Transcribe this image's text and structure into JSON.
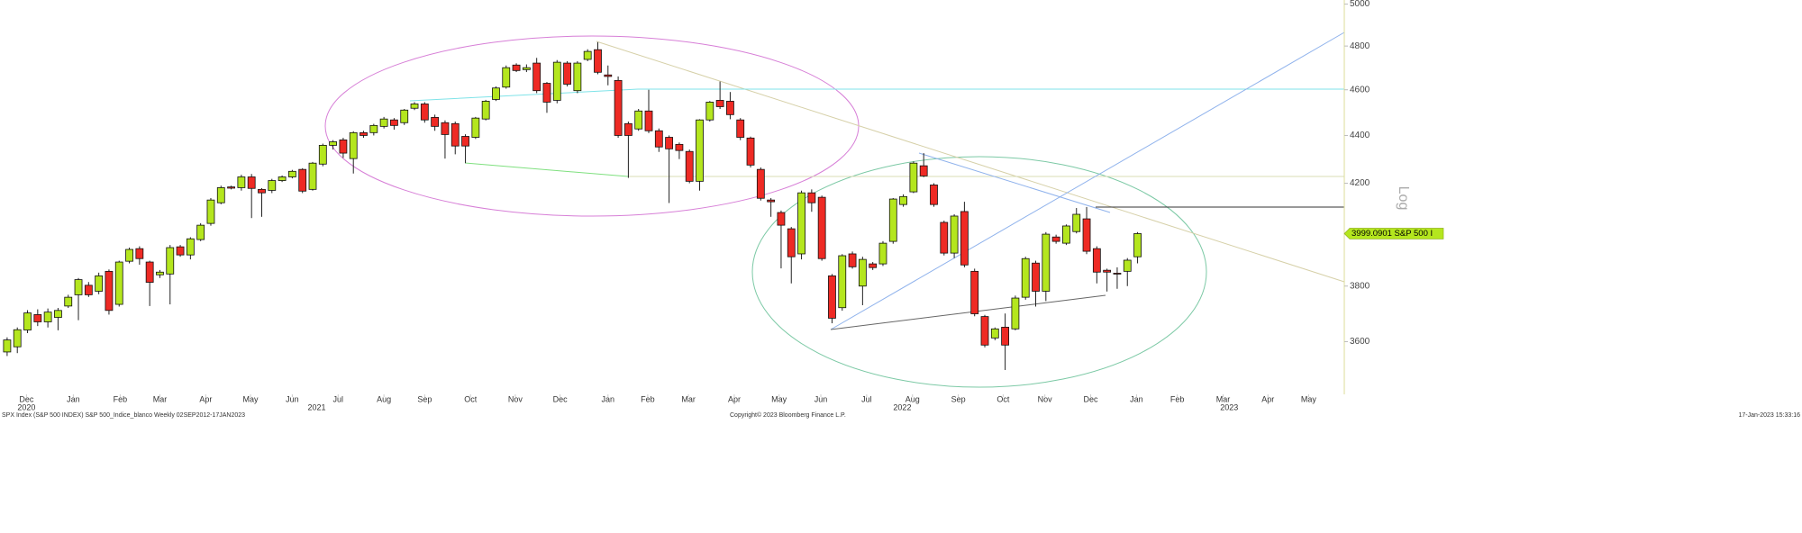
{
  "chart_data": {
    "type": "candlestick",
    "log_scale": true,
    "y_axis_label": "Log",
    "last_price_label": "3999.0901 S&P 500 I",
    "up_color": "#b4e61e",
    "down_color": "#ee2a24",
    "ylim": [
      3420,
      5020
    ],
    "yticks": [
      3600,
      3800,
      4200,
      4400,
      4600,
      4800,
      5000
    ],
    "xlim": [
      -0.7,
      131.3
    ],
    "xticks": [
      {
        "value": 1.9,
        "label": "Dec"
      },
      {
        "value": 6.5,
        "label": "Jan"
      },
      {
        "value": 11.1,
        "label": "Feb"
      },
      {
        "value": 15.0,
        "label": "Mar"
      },
      {
        "value": 19.5,
        "label": "Apr"
      },
      {
        "value": 23.9,
        "label": "May"
      },
      {
        "value": 28.0,
        "label": "Jun"
      },
      {
        "value": 32.5,
        "label": "Jul"
      },
      {
        "value": 37.0,
        "label": "Aug"
      },
      {
        "value": 41.0,
        "label": "Sep"
      },
      {
        "value": 45.5,
        "label": "Oct"
      },
      {
        "value": 49.9,
        "label": "Nov"
      },
      {
        "value": 54.3,
        "label": "Dec"
      },
      {
        "value": 59.0,
        "label": "Jan"
      },
      {
        "value": 62.9,
        "label": "Feb"
      },
      {
        "value": 66.9,
        "label": "Mar"
      },
      {
        "value": 71.4,
        "label": "Apr"
      },
      {
        "value": 75.8,
        "label": "May"
      },
      {
        "value": 79.9,
        "label": "Jun"
      },
      {
        "value": 84.4,
        "label": "Jul"
      },
      {
        "value": 88.9,
        "label": "Aug"
      },
      {
        "value": 93.4,
        "label": "Sep"
      },
      {
        "value": 97.8,
        "label": "Oct"
      },
      {
        "value": 101.9,
        "label": "Nov"
      },
      {
        "value": 106.4,
        "label": "Dec"
      },
      {
        "value": 110.9,
        "label": "Jan"
      },
      {
        "value": 114.9,
        "label": "Feb"
      },
      {
        "value": 119.4,
        "label": "Mar"
      },
      {
        "value": 123.8,
        "label": "Apr"
      },
      {
        "value": 127.8,
        "label": "May"
      }
    ],
    "year_ticks": [
      {
        "value": 1.9,
        "label": "2020"
      },
      {
        "value": 30.4,
        "label": "2021"
      },
      {
        "value": 87.9,
        "label": "2022"
      },
      {
        "value": 120.0,
        "label": "2023"
      }
    ],
    "x": [
      0,
      1,
      2,
      3,
      4,
      5,
      6,
      7,
      8,
      9,
      10,
      11,
      12,
      13,
      14,
      15,
      16,
      17,
      18,
      19,
      20,
      21,
      22,
      23,
      24,
      25,
      26,
      27,
      28,
      29,
      30,
      31,
      32,
      33,
      34,
      35,
      36,
      37,
      38,
      39,
      40,
      41,
      42,
      43,
      44,
      45,
      46,
      47,
      48,
      49,
      50,
      51,
      52,
      53,
      54,
      55,
      56,
      57,
      58,
      59,
      60,
      61,
      62,
      63,
      64,
      65,
      66,
      67,
      68,
      69,
      70,
      71,
      72,
      73,
      74,
      75,
      76,
      77,
      78,
      79,
      80,
      81,
      82,
      83,
      84,
      85,
      86,
      87,
      88,
      89,
      90,
      91,
      92,
      93,
      94,
      95,
      96,
      97,
      98,
      99,
      100,
      101,
      102,
      103,
      104,
      105,
      106,
      107,
      108,
      109,
      110,
      111
    ],
    "open": [
      3564,
      3582,
      3641,
      3696,
      3670,
      3686,
      3727,
      3768,
      3803,
      3781,
      3855,
      3733,
      3893,
      3941,
      3890,
      3842,
      3845,
      3948,
      3917,
      3976,
      4039,
      4121,
      4185,
      4182,
      4226,
      4175,
      4171,
      4211,
      4226,
      4257,
      4175,
      4279,
      4358,
      4381,
      4302,
      4412,
      4412,
      4439,
      4467,
      4455,
      4518,
      4537,
      4478,
      4455,
      4451,
      4396,
      4392,
      4471,
      4557,
      4612,
      4712,
      4691,
      4721,
      4629,
      4553,
      4721,
      4596,
      4738,
      4783,
      4667,
      4642,
      4451,
      4428,
      4506,
      4420,
      4392,
      4362,
      4332,
      4208,
      4467,
      4553,
      4549,
      4467,
      4389,
      4257,
      4132,
      4082,
      4018,
      3921,
      4161,
      4143,
      3838,
      3721,
      3921,
      3800,
      3883,
      3883,
      3969,
      4114,
      4165,
      4272,
      4193,
      4043,
      3924,
      4086,
      3855,
      3689,
      3613,
      3651,
      3645,
      3759,
      3886,
      3781,
      3986,
      3962,
      4007,
      4057,
      3941,
      3859,
      3848,
      3855,
      3910
    ],
    "high": [
      3615,
      3650,
      3712,
      3715,
      3718,
      3720,
      3768,
      3830,
      3815,
      3850,
      3862,
      3895,
      3945,
      3950,
      3895,
      3860,
      3955,
      3955,
      3985,
      4040,
      4140,
      4190,
      4190,
      4235,
      4238,
      4180,
      4218,
      4232,
      4255,
      4262,
      4288,
      4365,
      4380,
      4390,
      4418,
      4420,
      4450,
      4480,
      4475,
      4515,
      4545,
      4545,
      4490,
      4465,
      4460,
      4405,
      4480,
      4555,
      4615,
      4710,
      4720,
      4715,
      4745,
      4635,
      4735,
      4730,
      4730,
      4785,
      4818,
      4710,
      4660,
      4460,
      4515,
      4600,
      4430,
      4400,
      4370,
      4340,
      4470,
      4550,
      4637,
      4590,
      4475,
      4395,
      4265,
      4140,
      4090,
      4025,
      4170,
      4175,
      4150,
      3845,
      3920,
      3930,
      3910,
      3890,
      3970,
      4140,
      4155,
      4290,
      4325,
      4200,
      4050,
      4075,
      4125,
      3865,
      3695,
      3650,
      3700,
      3765,
      3910,
      3895,
      4005,
      3995,
      4035,
      4100,
      4104,
      3950,
      3865,
      3870,
      3905,
      4005
    ],
    "low": [
      3550,
      3560,
      3630,
      3655,
      3650,
      3640,
      3720,
      3676,
      3760,
      3770,
      3696,
      3725,
      3885,
      3880,
      3727,
      3830,
      3733,
      3910,
      3900,
      3970,
      4030,
      4115,
      4175,
      4170,
      4060,
      4065,
      4160,
      4205,
      4220,
      4160,
      4170,
      4270,
      4340,
      4305,
      4240,
      4390,
      4400,
      4430,
      4425,
      4445,
      4510,
      4455,
      4420,
      4302,
      4320,
      4283,
      4385,
      4465,
      4550,
      4605,
      4680,
      4680,
      4585,
      4498,
      4540,
      4615,
      4585,
      4730,
      4670,
      4620,
      4390,
      4222,
      4420,
      4410,
      4330,
      4120,
      4300,
      4200,
      4170,
      4460,
      4515,
      4470,
      4380,
      4265,
      4130,
      4065,
      3866,
      3810,
      3900,
      4085,
      3895,
      3665,
      3710,
      3865,
      3730,
      3860,
      3875,
      3960,
      4105,
      4160,
      4225,
      4105,
      3915,
      3905,
      3870,
      3690,
      3580,
      3605,
      3502,
      3640,
      3750,
      3725,
      3745,
      3960,
      3955,
      4000,
      3920,
      3810,
      3780,
      3790,
      3800,
      3885
    ],
    "close": [
      3606,
      3642,
      3702,
      3670,
      3705,
      3711,
      3759,
      3824,
      3768,
      3838,
      3711,
      3890,
      3938,
      3903,
      3814,
      3852,
      3945,
      3917,
      3979,
      4032,
      4132,
      4182,
      4180,
      4226,
      4179,
      4161,
      4211,
      4226,
      4249,
      4168,
      4283,
      4358,
      4373,
      4325,
      4412,
      4400,
      4443,
      4471,
      4443,
      4510,
      4537,
      4467,
      4439,
      4404,
      4355,
      4355,
      4475,
      4549,
      4608,
      4700,
      4687,
      4700,
      4596,
      4545,
      4725,
      4625,
      4721,
      4775,
      4679,
      4660,
      4400,
      4400,
      4506,
      4420,
      4351,
      4343,
      4336,
      4208,
      4467,
      4545,
      4525,
      4490,
      4392,
      4275,
      4139,
      4125,
      4032,
      3910,
      4161,
      4121,
      3903,
      3683,
      3914,
      3872,
      3900,
      3869,
      3962,
      4136,
      4146,
      4283,
      4230,
      4114,
      3924,
      4068,
      3879,
      3699,
      3588,
      3645,
      3588,
      3756,
      3903,
      3781,
      3997,
      3969,
      4029,
      4075,
      3931,
      3852,
      3852,
      3845,
      3897,
      3999.09
    ]
  },
  "footer": {
    "left": "SPX Index (S&P 500 INDEX) S&P 500_Indice_blanco  Weekly 02SEP2012-17JAN2023",
    "center": "Copyright© 2023 Bloomberg Finance L.P.",
    "right": "17-Jan-2023 15:33:16"
  }
}
